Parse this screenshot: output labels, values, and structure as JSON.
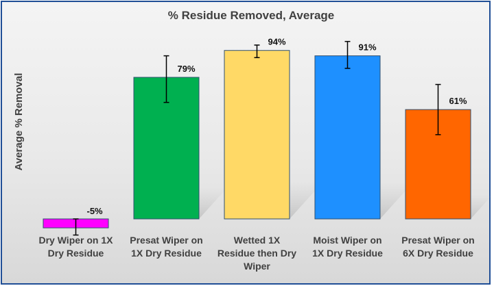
{
  "chart_data": {
    "type": "bar",
    "title": "% Residue Removed, Average",
    "ylabel": "Average % Removal",
    "xlabel": "",
    "ylim": [
      -10,
      100
    ],
    "grid": false,
    "legend": "none",
    "categories": [
      [
        "Dry Wiper on 1X",
        "Dry Residue"
      ],
      [
        "Presat Wiper on",
        "1X Dry Residue"
      ],
      [
        "Wetted 1X",
        "Residue then Dry",
        "Wiper"
      ],
      [
        "Moist Wiper on",
        "1X Dry Residue"
      ],
      [
        "Presat Wiper on",
        "6X Dry Residue"
      ]
    ],
    "values": [
      -5,
      79,
      94,
      91,
      61
    ],
    "data_labels": [
      "-5%",
      "79%",
      "94%",
      "91%",
      "61%"
    ],
    "error_low": [
      -9,
      65,
      90,
      84,
      47
    ],
    "error_high": [
      0,
      91,
      97,
      99,
      75
    ],
    "colors": [
      "#ff00ff",
      "#00b050",
      "#ffd966",
      "#1e90ff",
      "#ff6600"
    ]
  }
}
